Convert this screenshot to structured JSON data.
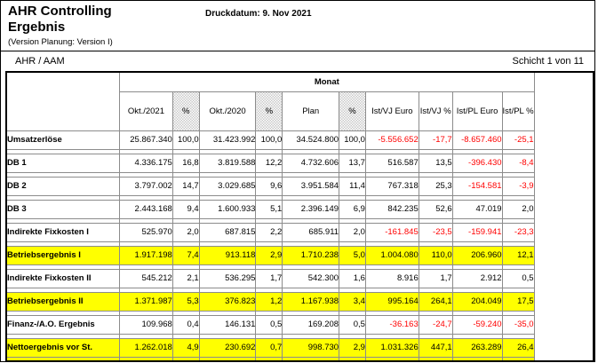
{
  "header": {
    "title_line1": "AHR Controlling",
    "title_line2": "Ergebnis",
    "version_note": "(Version Planung: Version I)",
    "print_date_label": "Druckdatum:",
    "print_date": "9. Nov 2021"
  },
  "subheader": {
    "org_unit": "AHR / AAM",
    "sheet_indicator": "Schicht 1 von 11"
  },
  "table": {
    "group_header": "Monat",
    "columns": [
      {
        "line1": "Okt./2021",
        "line2": "",
        "hatched": false
      },
      {
        "line1": "%",
        "line2": "",
        "hatched": true
      },
      {
        "line1": "Okt./2020",
        "line2": "",
        "hatched": false
      },
      {
        "line1": "%",
        "line2": "",
        "hatched": true
      },
      {
        "line1": "Plan",
        "line2": "",
        "hatched": false
      },
      {
        "line1": "%",
        "line2": "",
        "hatched": true
      },
      {
        "line1": "Ist/VJ",
        "line2": "Euro",
        "hatched": false
      },
      {
        "line1": "Ist/VJ",
        "line2": "%",
        "hatched": false
      },
      {
        "line1": "Ist/PL",
        "line2": "Euro",
        "hatched": false
      },
      {
        "line1": "Ist/PL",
        "line2": "%",
        "hatched": false
      }
    ],
    "rows": [
      {
        "label": "Umsatzerlöse",
        "highlight": false,
        "values": [
          "25.867.340",
          "100,0",
          "31.423.992",
          "100,0",
          "34.524.800",
          "100,0",
          "-5.556.652",
          "-17,7",
          "-8.657.460",
          "-25,1"
        ]
      },
      {
        "label": "DB 1",
        "highlight": false,
        "values": [
          "4.336.175",
          "16,8",
          "3.819.588",
          "12,2",
          "4.732.606",
          "13,7",
          "516.587",
          "13,5",
          "-396.430",
          "-8,4"
        ]
      },
      {
        "label": "DB 2",
        "highlight": false,
        "values": [
          "3.797.002",
          "14,7",
          "3.029.685",
          "9,6",
          "3.951.584",
          "11,4",
          "767.318",
          "25,3",
          "-154.581",
          "-3,9"
        ]
      },
      {
        "label": "DB 3",
        "highlight": false,
        "values": [
          "2.443.168",
          "9,4",
          "1.600.933",
          "5,1",
          "2.396.149",
          "6,9",
          "842.235",
          "52,6",
          "47.019",
          "2,0"
        ]
      },
      {
        "label": "Indirekte Fixkosten I",
        "highlight": false,
        "values": [
          "525.970",
          "2,0",
          "687.815",
          "2,2",
          "685.911",
          "2,0",
          "-161.845",
          "-23,5",
          "-159.941",
          "-23,3"
        ]
      },
      {
        "label": "Betriebsergebnis I",
        "highlight": true,
        "values": [
          "1.917.198",
          "7,4",
          "913.118",
          "2,9",
          "1.710.238",
          "5,0",
          "1.004.080",
          "110,0",
          "206.960",
          "12,1"
        ]
      },
      {
        "label": "Indirekte Fixkosten II",
        "highlight": false,
        "values": [
          "545.212",
          "2,1",
          "536.295",
          "1,7",
          "542.300",
          "1,6",
          "8.916",
          "1,7",
          "2.912",
          "0,5"
        ]
      },
      {
        "label": "Betriebsergebnis II",
        "highlight": true,
        "values": [
          "1.371.987",
          "5,3",
          "376.823",
          "1,2",
          "1.167.938",
          "3,4",
          "995.164",
          "264,1",
          "204.049",
          "17,5"
        ]
      },
      {
        "label": "Finanz-/A.O. Ergebnis",
        "highlight": false,
        "values": [
          "109.968",
          "0,4",
          "146.131",
          "0,5",
          "169.208",
          "0,5",
          "-36.163",
          "-24,7",
          "-59.240",
          "-35,0"
        ]
      },
      {
        "label": "Nettoergebnis vor St.",
        "highlight": true,
        "values": [
          "1.262.018",
          "4,9",
          "230.692",
          "0,7",
          "998.730",
          "2,9",
          "1.031.326",
          "447,1",
          "263.289",
          "26,4"
        ]
      }
    ],
    "colors": {
      "highlight": "#ffff00",
      "negative": "#ff0000"
    }
  }
}
